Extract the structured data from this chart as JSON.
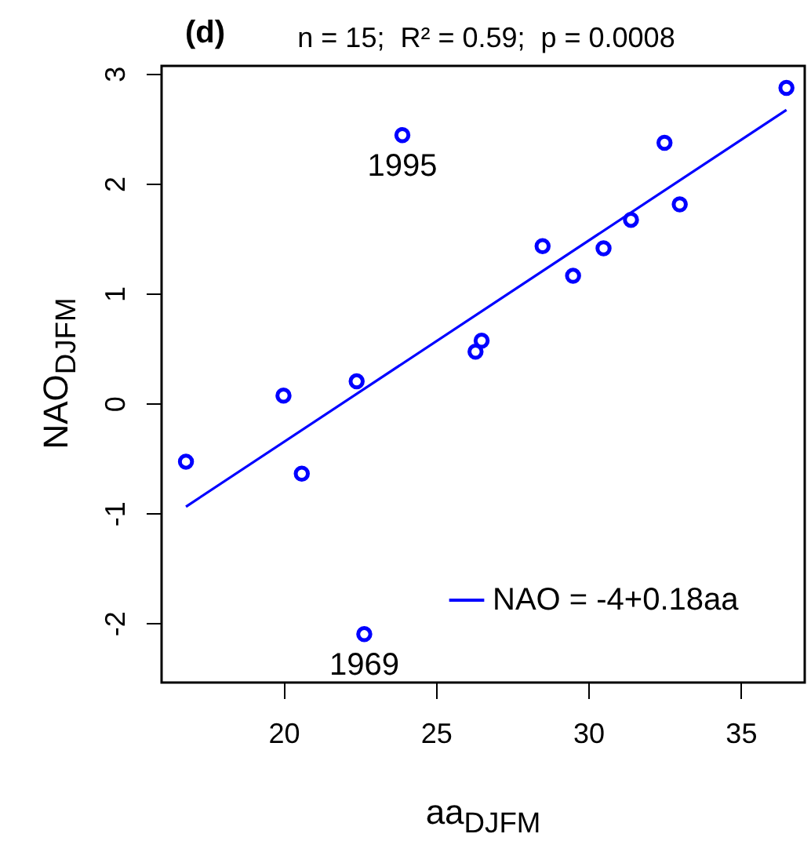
{
  "chart_data": {
    "type": "scatter",
    "title": "n = 15;  R² = 0.59;  p = 0.0008",
    "xlabel": "aa$_{DJFM}$",
    "ylabel": "NAO$_{DJFM}$",
    "annotations": [
      "(d)",
      {
        "text": "1995",
        "x": 23.9,
        "y": 2.44
      },
      {
        "text": "1969",
        "x": 22.65,
        "y": -2.1
      }
    ],
    "x": [
      16.8,
      20.0,
      20.6,
      22.4,
      23.9,
      22.65,
      26.3,
      26.5,
      28.5,
      29.5,
      30.5,
      31.4,
      32.5,
      33.0,
      36.5
    ],
    "series": [
      {
        "marker": "circle",
        "color": "#0000ff",
        "values": [
          -0.53,
          0.07,
          -0.64,
          0.2,
          2.44,
          -2.1,
          0.47,
          0.57,
          1.43,
          1.16,
          1.41,
          1.67,
          2.37,
          1.81,
          2.87
        ]
      },
      {
        "type": "line",
        "name": "NAO = -4+0.18aa",
        "color": "#0000ff",
        "x": [
          16.8,
          36.5
        ],
        "values": [
          -0.94,
          2.67
        ]
      }
    ],
    "xlim": [
      16.0,
      37.1
    ],
    "ylim": [
      -2.54,
      3.07
    ],
    "xticks": [
      20,
      25,
      30,
      35
    ],
    "yticks": [
      -2,
      -1,
      0,
      1,
      2,
      3
    ],
    "line_style": "solid",
    "legend": "bottom right",
    "grid": false
  }
}
